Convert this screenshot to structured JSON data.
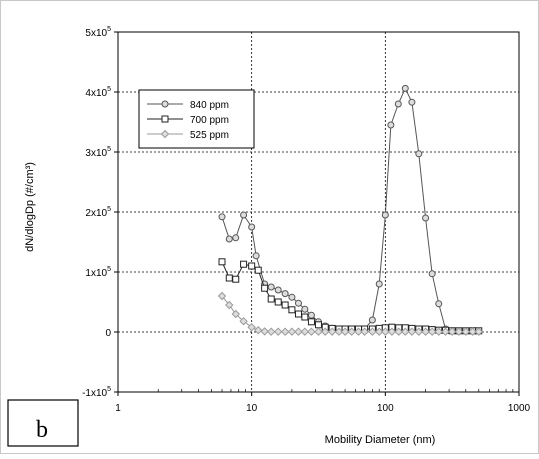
{
  "chart_data": {
    "type": "scatter",
    "panel_label": "b",
    "xlabel": "Mobility Diameter (nm)",
    "ylabel": "dN/dlogDp (#/cm³)",
    "xscale": "log",
    "xlim": [
      1,
      1000
    ],
    "ylim": [
      -100000,
      500000
    ],
    "x_ticks": [
      "1",
      "10",
      "100",
      "1000"
    ],
    "y_ticks": [
      {
        "v": -100000,
        "m": "-1x10",
        "e": "5"
      },
      {
        "v": 0,
        "m": "0",
        "e": ""
      },
      {
        "v": 100000,
        "m": "1x10",
        "e": "5"
      },
      {
        "v": 200000,
        "m": "2x10",
        "e": "5"
      },
      {
        "v": 300000,
        "m": "3x10",
        "e": "5"
      },
      {
        "v": 400000,
        "m": "4x10",
        "e": "5"
      },
      {
        "v": 500000,
        "m": "5x10",
        "e": "5"
      }
    ],
    "grid": true,
    "legend_position": "top-left",
    "series": [
      {
        "name": "840 ppm",
        "marker": "circle",
        "color": "#555555",
        "points": [
          [
            6,
            192000
          ],
          [
            6.8,
            155000
          ],
          [
            7.6,
            157000
          ],
          [
            8.7,
            195000
          ],
          [
            10,
            175000
          ],
          [
            10.8,
            127000
          ],
          [
            12.5,
            80000
          ],
          [
            14,
            75000
          ],
          [
            15.8,
            70000
          ],
          [
            17.8,
            64000
          ],
          [
            20,
            58000
          ],
          [
            22.4,
            48000
          ],
          [
            25,
            38000
          ],
          [
            28,
            28000
          ],
          [
            31.6,
            17000
          ],
          [
            35.5,
            10000
          ],
          [
            40,
            6000
          ],
          [
            45,
            4000
          ],
          [
            50,
            3000
          ],
          [
            56,
            3000
          ],
          [
            63,
            3000
          ],
          [
            70,
            5000
          ],
          [
            80,
            20000
          ],
          [
            90,
            80000
          ],
          [
            100,
            195000
          ],
          [
            110,
            345000
          ],
          [
            125,
            380000
          ],
          [
            141,
            406000
          ],
          [
            158,
            383000
          ],
          [
            178,
            297000
          ],
          [
            200,
            190000
          ],
          [
            224,
            97000
          ],
          [
            251,
            47000
          ],
          [
            282,
            5000
          ],
          [
            316,
            2000
          ],
          [
            355,
            1000
          ],
          [
            400,
            1000
          ],
          [
            450,
            1000
          ],
          [
            500,
            1000
          ]
        ]
      },
      {
        "name": "700 ppm",
        "marker": "square",
        "color": "#222222",
        "points": [
          [
            6,
            117000
          ],
          [
            6.8,
            90000
          ],
          [
            7.6,
            88000
          ],
          [
            8.7,
            113000
          ],
          [
            10,
            110000
          ],
          [
            11.2,
            103000
          ],
          [
            12.5,
            73000
          ],
          [
            14,
            55000
          ],
          [
            15.8,
            50000
          ],
          [
            17.8,
            45000
          ],
          [
            20,
            37000
          ],
          [
            22.4,
            30000
          ],
          [
            25,
            25000
          ],
          [
            28,
            17000
          ],
          [
            31.6,
            12000
          ],
          [
            35.5,
            8000
          ],
          [
            40,
            6000
          ],
          [
            45,
            5000
          ],
          [
            50,
            5000
          ],
          [
            56,
            5000
          ],
          [
            63,
            5000
          ],
          [
            70,
            5000
          ],
          [
            80,
            5000
          ],
          [
            90,
            6000
          ],
          [
            100,
            7000
          ],
          [
            112,
            8000
          ],
          [
            126,
            7000
          ],
          [
            141,
            7000
          ],
          [
            158,
            6000
          ],
          [
            178,
            5000
          ],
          [
            200,
            5000
          ],
          [
            224,
            4000
          ],
          [
            251,
            3000
          ],
          [
            282,
            3000
          ],
          [
            316,
            2000
          ],
          [
            355,
            2000
          ],
          [
            400,
            2000
          ],
          [
            450,
            2000
          ],
          [
            500,
            2000
          ]
        ]
      },
      {
        "name": "525 ppm",
        "marker": "diamond",
        "color": "#999999",
        "points": [
          [
            6,
            60000
          ],
          [
            6.8,
            45000
          ],
          [
            7.6,
            30000
          ],
          [
            8.7,
            18000
          ],
          [
            10,
            8000
          ],
          [
            11.2,
            3000
          ],
          [
            12.5,
            1000
          ],
          [
            14,
            500
          ],
          [
            15.8,
            500
          ],
          [
            17.8,
            500
          ],
          [
            20,
            500
          ],
          [
            22.4,
            500
          ],
          [
            25,
            500
          ],
          [
            28,
            500
          ],
          [
            31.6,
            500
          ],
          [
            35.5,
            500
          ],
          [
            40,
            500
          ],
          [
            45,
            500
          ],
          [
            50,
            500
          ],
          [
            56,
            500
          ],
          [
            63,
            500
          ],
          [
            70,
            500
          ],
          [
            80,
            500
          ],
          [
            90,
            500
          ],
          [
            100,
            500
          ],
          [
            112,
            500
          ],
          [
            126,
            500
          ],
          [
            141,
            500
          ],
          [
            158,
            500
          ],
          [
            178,
            500
          ],
          [
            200,
            500
          ],
          [
            224,
            500
          ],
          [
            251,
            500
          ],
          [
            282,
            500
          ],
          [
            316,
            500
          ],
          [
            355,
            500
          ],
          [
            400,
            500
          ],
          [
            450,
            500
          ],
          [
            500,
            500
          ]
        ]
      }
    ]
  }
}
